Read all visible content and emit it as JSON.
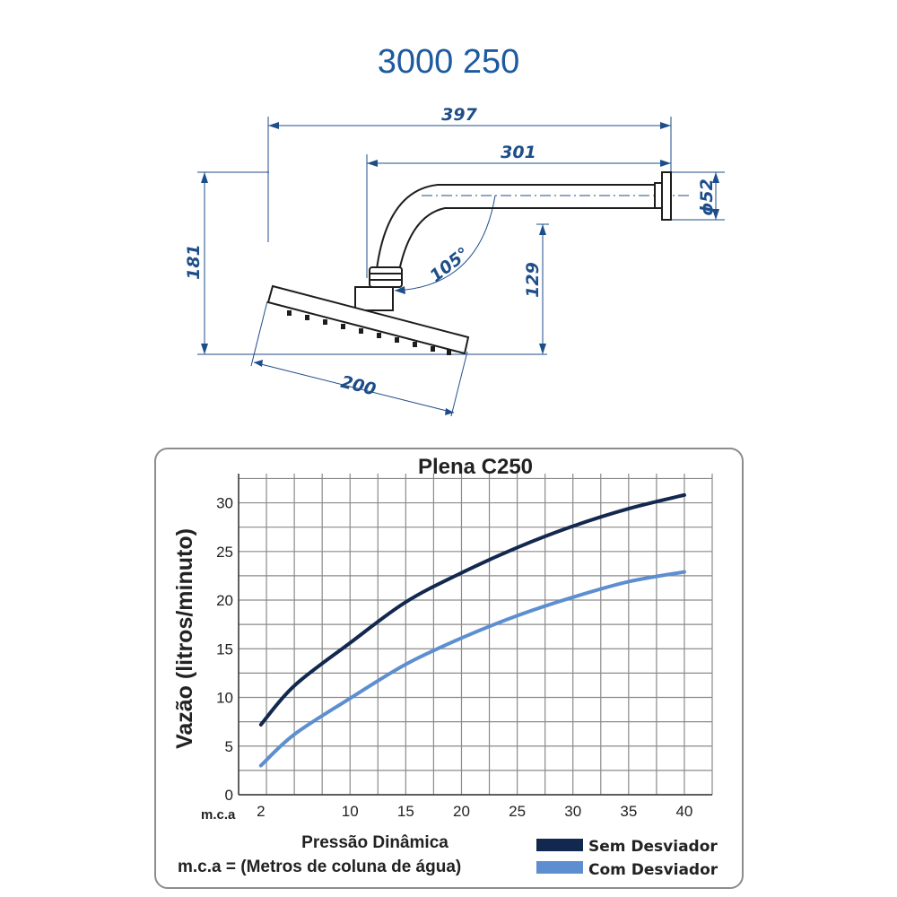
{
  "model_code": "3000 250",
  "drawing": {
    "dimensions": {
      "total_length": "397",
      "arm_length": "301",
      "diameter": "ϕ52",
      "height_total": "181",
      "height_arm": "129",
      "angle": "105°",
      "head_width": "200"
    },
    "line_color": "#1d1d1d",
    "dim_color": "#1d4e89"
  },
  "chart_data": {
    "type": "line",
    "title": "Plena C250",
    "ylabel": "Vazão (litros/minuto)",
    "xlabel": "Pressão Dinâmica",
    "x_unit": "m.c.a",
    "footnote": "m.c.a = (Metros de coluna de água)",
    "xlim": [
      0,
      42.5
    ],
    "ylim": [
      0,
      33
    ],
    "x_ticks": [
      2,
      10,
      15,
      20,
      25,
      30,
      35,
      40
    ],
    "y_ticks": [
      0,
      5,
      10,
      15,
      20,
      25,
      30
    ],
    "grid": true,
    "legend_position": "bottom-right",
    "x": [
      2,
      5,
      10,
      15,
      20,
      25,
      30,
      35,
      40
    ],
    "series": [
      {
        "name": "Sem Desviador",
        "color": "#13284f",
        "values": [
          7.2,
          11.2,
          15.6,
          19.8,
          22.8,
          25.4,
          27.6,
          29.4,
          30.8
        ]
      },
      {
        "name": "Com Desviador",
        "color": "#5d8fd0",
        "values": [
          3.0,
          6.2,
          9.9,
          13.4,
          16.1,
          18.4,
          20.3,
          21.9,
          22.9
        ]
      }
    ]
  }
}
